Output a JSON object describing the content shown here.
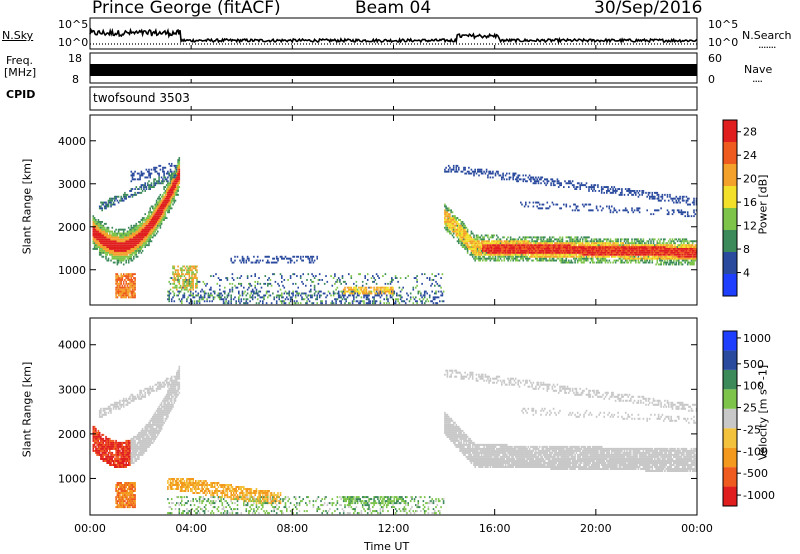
{
  "header": {
    "station": "Prince George (fitACF)",
    "beam": "Beam 04",
    "date": "30/Sep/2016"
  },
  "panels": {
    "nsky": {
      "label": "N.Sky",
      "ticks": [
        "10^5",
        "10^0"
      ]
    },
    "nsearch": {
      "label": "N.Search",
      "ticks": [
        "10^5",
        "10^0"
      ]
    },
    "freq": {
      "label_line1": "Freq.",
      "label_line2": "[MHz]",
      "ticks": [
        "18",
        "8"
      ]
    },
    "nave": {
      "label": "Nave",
      "ticks": [
        "60",
        "0"
      ]
    },
    "cpid": {
      "label": "CPID",
      "value": "twofsound 3503"
    }
  },
  "colors": {
    "power": [
      "#1f3fff",
      "#2a4a9e",
      "#3c8a5a",
      "#7dc54a",
      "#f2e02a",
      "#f3a12a",
      "#ef5a1e",
      "#e01e1e"
    ],
    "velocity": [
      "#e01e1e",
      "#ef5a1e",
      "#f39a1e",
      "#f3c23c",
      "#c8c8c8",
      "#7dc54a",
      "#3c8a5a",
      "#2a4a9e",
      "#1f3fff"
    ],
    "ground_scatter": "#c8c8c8"
  },
  "chart_data": [
    {
      "type": "heatmap",
      "quantity": "Power",
      "xlabel": "",
      "ylabel": "Slant Range [km]",
      "ylim": [
        180,
        4600
      ],
      "yticks": [
        "1000",
        "2000",
        "3000",
        "4000"
      ],
      "xlim_hours": [
        0,
        24
      ],
      "colorbar": {
        "label": "Power [dB]",
        "range": [
          0,
          30
        ],
        "ticks": [
          "4",
          "8",
          "12",
          "16",
          "20",
          "24",
          "28"
        ]
      },
      "features": [
        {
          "name": "early-arc",
          "t_hours": [
            0.1,
            3.5
          ],
          "range_km": [
            800,
            3500
          ],
          "peak_db": 28
        },
        {
          "name": "late-band",
          "t_hours": [
            14.0,
            24.0
          ],
          "range_km": [
            1100,
            3500
          ],
          "peak_db": 28
        },
        {
          "name": "day-near-range",
          "t_hours": [
            3.0,
            14.0
          ],
          "range_km": [
            180,
            1400
          ],
          "peak_db": 16
        }
      ]
    },
    {
      "type": "heatmap",
      "quantity": "Velocity",
      "xlabel": "Time UT",
      "ylabel": "Slant Range [km]",
      "ylim": [
        180,
        4600
      ],
      "yticks": [
        "1000",
        "2000",
        "3000",
        "4000"
      ],
      "xticks": [
        "00:00",
        "04:00",
        "08:00",
        "12:00",
        "16:00",
        "20:00",
        "00:00"
      ],
      "xlim_hours": [
        0,
        24
      ],
      "colorbar": {
        "label": "Velocity [m s^-1]",
        "ticks": [
          "1000",
          "500",
          "100",
          "25",
          "-25",
          "-100",
          "-500",
          "-1000"
        ]
      },
      "features": [
        {
          "name": "early-arc",
          "t_hours": [
            0.1,
            3.5
          ],
          "velocity_ms": [
            -1000,
            25
          ]
        },
        {
          "name": "late-band",
          "t_hours": [
            14.0,
            24.0
          ],
          "velocity_ms": [
            -25,
            25
          ]
        },
        {
          "name": "day-near-range",
          "t_hours": [
            3.0,
            14.0
          ],
          "velocity_ms": [
            -500,
            100
          ]
        }
      ]
    }
  ],
  "axis": {
    "time_label": "Time UT",
    "time_ticks": [
      "00:00",
      "04:00",
      "08:00",
      "12:00",
      "16:00",
      "20:00",
      "00:00"
    ]
  }
}
